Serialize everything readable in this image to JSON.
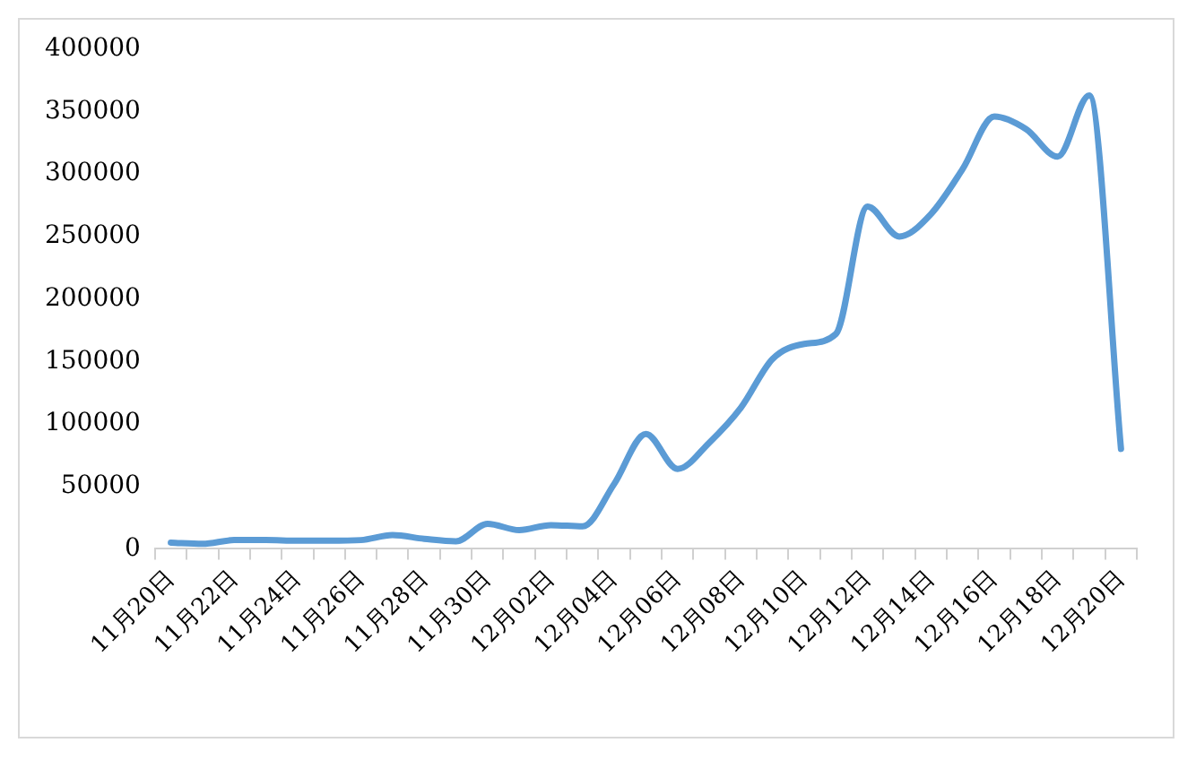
{
  "chart_data": {
    "type": "line",
    "categories": [
      "11月20日",
      null,
      "11月22日",
      null,
      "11月24日",
      null,
      "11月26日",
      null,
      "11月28日",
      null,
      "11月30日",
      null,
      "12月02日",
      null,
      "12月04日",
      null,
      "12月06日",
      null,
      "12月08日",
      null,
      "12月10日",
      null,
      "12月12日",
      null,
      "12月14日",
      null,
      "12月16日",
      null,
      "12月18日",
      null,
      "12月20日"
    ],
    "series": [
      {
        "color": "#5b9bd5",
        "values": [
          5000,
          4000,
          7000,
          7000,
          6500,
          6500,
          7000,
          11000,
          8000,
          6000,
          20000,
          15000,
          19000,
          18000,
          52000,
          92000,
          64000,
          85000,
          113000,
          152000,
          164000,
          172000,
          274000,
          250000,
          268000,
          304000,
          346000,
          336000,
          314000,
          363000,
          80000
        ]
      }
    ],
    "ylim": [
      0,
      400000
    ],
    "yticks": [
      0,
      50000,
      100000,
      150000,
      200000,
      250000,
      300000,
      350000,
      400000
    ],
    "grid": false,
    "legend": false,
    "marker": "none",
    "line_style": "solid"
  }
}
